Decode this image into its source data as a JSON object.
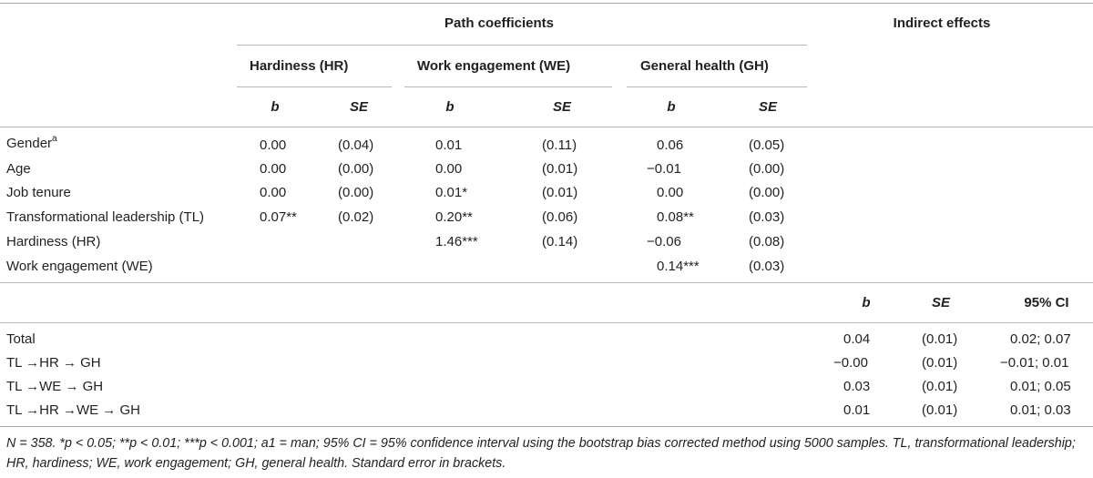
{
  "header": {
    "path_coefficients": "Path coefficients",
    "indirect_effects": "Indirect effects",
    "groups": [
      "Hardiness (HR)",
      "Work engagement (WE)",
      "General health (GH)"
    ],
    "b": "b",
    "se": "SE",
    "ci": "95% CI"
  },
  "path_rows": [
    {
      "label": "Gender",
      "sup": "a",
      "hr_b": "0.00",
      "hr_se": "(0.04)",
      "we_b": "0.01",
      "we_se": "(0.11)",
      "gh_b": "0.06",
      "gh_se": "(0.05)"
    },
    {
      "label": "Age",
      "sup": "",
      "hr_b": "0.00",
      "hr_se": "(0.00)",
      "we_b": "0.00",
      "we_se": "(0.01)",
      "gh_b": "−0.01",
      "gh_se": "(0.00)"
    },
    {
      "label": "Job tenure",
      "sup": "",
      "hr_b": "0.00",
      "hr_se": "(0.00)",
      "we_b": "0.01*",
      "we_se": "(0.01)",
      "gh_b": "0.00",
      "gh_se": "(0.00)"
    },
    {
      "label": "Transformational leadership (TL)",
      "sup": "",
      "hr_b": "0.07**",
      "hr_se": "(0.02)",
      "we_b": "0.20**",
      "we_se": "(0.06)",
      "gh_b": "0.08**",
      "gh_se": "(0.03)"
    },
    {
      "label": "Hardiness (HR)",
      "sup": "",
      "hr_b": "",
      "hr_se": "",
      "we_b": "1.46***",
      "we_se": "(0.14)",
      "gh_b": "−0.06",
      "gh_se": "(0.08)"
    },
    {
      "label": "Work engagement (WE)",
      "sup": "",
      "hr_b": "",
      "hr_se": "",
      "we_b": "",
      "we_se": "",
      "gh_b": "0.14***",
      "gh_se": "(0.03)"
    }
  ],
  "indirect_rows": [
    {
      "label": "Total",
      "b": "0.04",
      "se": "(0.01)",
      "ci": "0.02; 0.07"
    },
    {
      "label": "TL →HR → GH",
      "b": "−0.00",
      "se": "(0.01)",
      "ci": "−0.01; 0.01"
    },
    {
      "label": "TL →WE → GH",
      "b": "0.03",
      "se": "(0.01)",
      "ci": "0.01; 0.05"
    },
    {
      "label": "TL →HR →WE → GH",
      "b": "0.01",
      "se": "(0.01)",
      "ci": "0.01; 0.03"
    }
  ],
  "footnote": "N = 358. *p < 0.05; **p < 0.01; ***p < 0.001; a1 = man; 95% CI = 95% confidence interval using the bootstrap bias corrected method using 5000 samples. TL, transformational leadership; HR, hardiness; WE, work engagement; GH, general health. Standard error in brackets."
}
